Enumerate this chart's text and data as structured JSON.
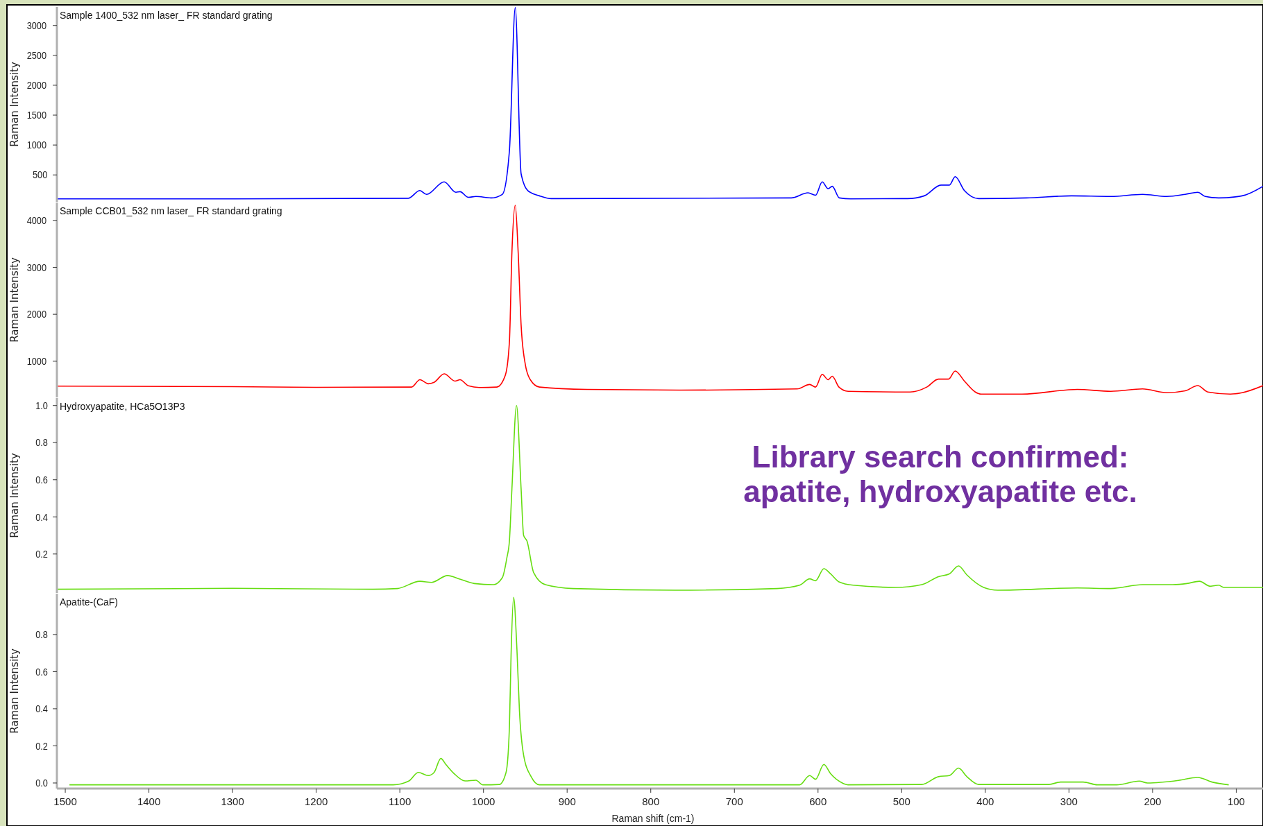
{
  "chart_data": [
    {
      "type": "line",
      "title": "Sample 1400_532 nm laser_ FR standard grating",
      "ylabel": "Raman Intensity",
      "tick_labels": "y",
      "x": [
        1510,
        1300,
        1090,
        1076,
        1068,
        1047,
        1033,
        1028,
        1018,
        1009,
        991,
        977.5,
        969,
        962,
        955,
        947,
        933,
        919,
        632,
        612,
        603,
        595,
        588,
        583,
        574.5,
        561,
        493,
        473,
        453,
        443,
        436,
        425,
        408,
        351,
        297,
        250,
        212,
        183,
        161,
        146,
        137,
        121,
        93,
        68
      ],
      "series": [
        {
          "color": "#0000ff",
          "values": [
            100,
            100,
            110,
            238,
            174,
            383,
            209,
            220,
            125,
            140,
            115,
            174,
            900,
            3300,
            520,
            238,
            150,
            104,
            115,
            200,
            160,
            383,
            270,
            310,
            115,
            100,
            104,
            150,
            330,
            330,
            470,
            238,
            104,
            115,
            150,
            140,
            175,
            140,
            175,
            210,
            140,
            115,
            150,
            310
          ]
        }
      ],
      "xlim": [
        1510,
        68
      ],
      "ylim": [
        50,
        3310
      ],
      "yticks": [
        500,
        1000,
        1500,
        2000,
        2500,
        3000
      ]
    },
    {
      "type": "line",
      "title": "Sample CCB01_532 nm laser_ FR standard grating",
      "ylabel": "Raman Intensity",
      "tick_labels": "y",
      "x": [
        1510,
        1300,
        1200,
        1086,
        1076,
        1066,
        1059,
        1047,
        1034,
        1028,
        1018,
        1005,
        984,
        974,
        969,
        966,
        962,
        958.5,
        955,
        950,
        944,
        933,
        876,
        765,
        625,
        610,
        603,
        595,
        588,
        583,
        575,
        564,
        490,
        470,
        456,
        444,
        436,
        425,
        412,
        405,
        356,
        290,
        250,
        212,
        183,
        161,
        146,
        134,
        107,
        93,
        68
      ],
      "series": [
        {
          "color": "#ff0000",
          "values": [
            470,
            460,
            445,
            450,
            607,
            520,
            550,
            732,
            578,
            607,
            476,
            440,
            450,
            696,
            1409,
            3314,
            4320,
            3314,
            1771,
            935,
            607,
            450,
            400,
            385,
            410,
            505,
            450,
            720,
            607,
            680,
            450,
            360,
            345,
            450,
            620,
            620,
            792,
            578,
            345,
            300,
            300,
            400,
            360,
            410,
            330,
            370,
            480,
            345,
            300,
            330,
            480
          ]
        }
      ],
      "xlim": [
        1510,
        68
      ],
      "ylim": [
        230,
        4380
      ],
      "yticks": [
        1000,
        2000,
        3000,
        4000
      ]
    },
    {
      "type": "line",
      "title": "Hydroxyapatite, HCa5O13P3",
      "ylabel": "Raman Intensity",
      "tick_labels": "y",
      "annotations": [
        "Library search confirmed:\napatite, hydroxyapatite etc."
      ],
      "x": [
        1510,
        1300,
        1132,
        1103,
        1076,
        1062,
        1043,
        1029,
        1011,
        988,
        977.5,
        972,
        969,
        966,
        960.5,
        955,
        952,
        948,
        940,
        926,
        893,
        771,
        649,
        622,
        610,
        603,
        593,
        585,
        575,
        558,
        507,
        476,
        456,
        443,
        432,
        422,
        402,
        385,
        290,
        250,
        212,
        176,
        159,
        144,
        131,
        121,
        115,
        68
      ],
      "series": [
        {
          "color": "#66dd11",
          "values": [
            0.01,
            0.015,
            0.01,
            0.014,
            0.053,
            0.047,
            0.084,
            0.066,
            0.041,
            0.035,
            0.072,
            0.18,
            0.27,
            0.55,
            1.0,
            0.55,
            0.3,
            0.27,
            0.1,
            0.035,
            0.014,
            0.005,
            0.014,
            0.032,
            0.066,
            0.056,
            0.121,
            0.093,
            0.05,
            0.032,
            0.02,
            0.035,
            0.078,
            0.093,
            0.136,
            0.087,
            0.02,
            0.005,
            0.017,
            0.014,
            0.035,
            0.035,
            0.041,
            0.053,
            0.026,
            0.032,
            0.02,
            0.02
          ]
        }
      ],
      "xlim": [
        1510,
        68
      ],
      "ylim": [
        -0.01,
        1.04
      ],
      "yticks": [
        0.2,
        0.4,
        0.6,
        0.8,
        {
          "value": 1,
          "label": "1.0"
        }
      ]
    },
    {
      "type": "line",
      "title": "Apatite-(CaF)",
      "ylabel": "Raman Intensity",
      "xlabel": "Raman shift (cm-1)",
      "x": [
        1495,
        1108,
        1089,
        1078,
        1066,
        1059,
        1051,
        1045,
        1035,
        1022,
        1009,
        1001,
        981,
        973,
        969,
        967,
        964,
        960,
        957,
        952,
        943,
        933,
        622,
        610,
        603,
        593,
        585,
        571,
        564,
        476,
        456,
        443,
        432,
        422,
        408,
        324,
        310,
        283,
        266,
        243,
        216,
        206,
        169,
        146,
        129,
        109
      ],
      "series": [
        {
          "color": "#66dd11",
          "values": [
            -0.01,
            -0.01,
            0.011,
            0.057,
            0.04,
            0.057,
            0.132,
            0.1,
            0.05,
            0.011,
            0.015,
            -0.01,
            -0.008,
            0.057,
            0.3,
            0.69,
            1.0,
            0.72,
            0.39,
            0.15,
            0.034,
            -0.01,
            -0.01,
            0.04,
            0.02,
            0.1,
            0.05,
            0,
            -0.01,
            -0.008,
            0.034,
            0.04,
            0.08,
            0.034,
            -0.008,
            -0.008,
            0.005,
            0.005,
            -0.01,
            -0.01,
            0.01,
            0,
            0.014,
            0.03,
            0.005,
            -0.01
          ]
        }
      ],
      "xlim": [
        1510,
        68
      ],
      "xticks": [
        1500,
        1400,
        1300,
        1200,
        1100,
        1000,
        900,
        800,
        700,
        600,
        500,
        400,
        300,
        200,
        100
      ],
      "ylim": [
        -0.03,
        1.02
      ],
      "yticks": [
        {
          "value": 0,
          "label": "0.0"
        },
        0.2,
        0.4,
        0.6,
        0.8
      ]
    }
  ]
}
